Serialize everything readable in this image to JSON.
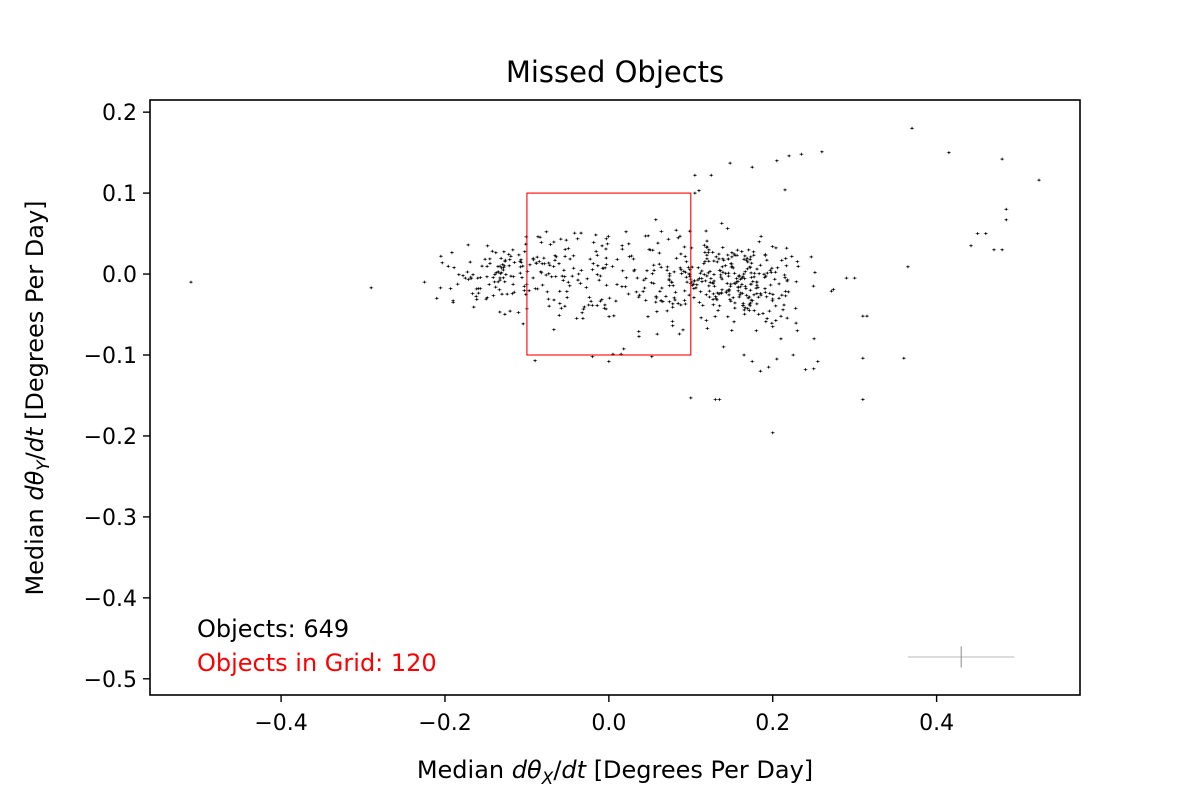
{
  "chart_data": {
    "type": "scatter",
    "title": "Missed Objects",
    "xlabel": {
      "prefix": "Median ",
      "math": "dθ",
      "sub": "X",
      "mid": "/",
      "math2": "dt",
      "suffix": " [Degrees Per Day]"
    },
    "ylabel": {
      "prefix": "Median ",
      "math": "dθ",
      "sub": "Y",
      "mid": "/",
      "math2": "dt",
      "suffix": " [Degrees Per Day]"
    },
    "xlim": [
      -0.56,
      0.575
    ],
    "ylim": [
      -0.52,
      0.215
    ],
    "xticks": [
      -0.4,
      -0.2,
      0.0,
      0.2,
      0.4
    ],
    "xtick_labels": [
      "−0.4",
      "−0.2",
      "0.0",
      "0.2",
      "0.4"
    ],
    "yticks": [
      0.2,
      0.1,
      0.0,
      -0.1,
      -0.2,
      -0.3,
      -0.4,
      -0.5
    ],
    "ytick_labels": [
      "0.2",
      "0.1",
      "0.0",
      "−0.1",
      "−0.2",
      "−0.3",
      "−0.4",
      "−0.5"
    ],
    "grid": false,
    "marker_color": "#000000",
    "grid_box": {
      "x0": -0.1,
      "x1": 0.1,
      "y0": -0.1,
      "y1": 0.1,
      "color": "#ff0000"
    },
    "annotations": [
      {
        "name": "objects-count",
        "text": "Objects: 649",
        "color": "#000000"
      },
      {
        "name": "objects-in-grid-count",
        "text": "Objects in Grid: 120",
        "color": "#ff0000"
      }
    ],
    "error_bar_example": {
      "x": 0.43,
      "y": -0.473,
      "xerr": 0.065,
      "yerr": 0.013
    },
    "outlier_points": [
      [
        -0.51,
        -0.01
      ],
      [
        -0.29,
        -0.017
      ],
      [
        0.37,
        0.18
      ],
      [
        0.415,
        0.15
      ],
      [
        0.48,
        0.142
      ],
      [
        0.525,
        0.116
      ],
      [
        0.485,
        0.08
      ],
      [
        0.485,
        0.067
      ],
      [
        0.45,
        0.05
      ],
      [
        0.46,
        0.05
      ],
      [
        0.442,
        0.035
      ],
      [
        0.48,
        0.03
      ],
      [
        0.47,
        0.03
      ],
      [
        0.365,
        0.009
      ],
      [
        0.105,
        0.122
      ],
      [
        0.125,
        0.122
      ],
      [
        0.148,
        0.137
      ],
      [
        0.175,
        0.132
      ],
      [
        0.205,
        0.14
      ],
      [
        0.22,
        0.146
      ],
      [
        0.235,
        0.148
      ],
      [
        0.26,
        0.151
      ],
      [
        0.215,
        0.104
      ],
      [
        0.105,
        0.1
      ],
      [
        0.11,
        0.103
      ],
      [
        0.29,
        -0.005
      ],
      [
        0.3,
        -0.005
      ],
      [
        0.31,
        -0.052
      ],
      [
        0.315,
        -0.052
      ],
      [
        0.31,
        -0.104
      ],
      [
        0.36,
        -0.104
      ],
      [
        0.31,
        -0.155
      ],
      [
        0.1,
        -0.153
      ],
      [
        0.13,
        -0.155
      ],
      [
        0.135,
        -0.155
      ],
      [
        0.2,
        -0.196
      ],
      [
        -0.09,
        -0.107
      ],
      [
        -0.02,
        -0.102
      ],
      [
        0.005,
        -0.099
      ],
      [
        0.015,
        -0.099
      ],
      [
        0.0,
        -0.108
      ],
      [
        0.14,
        -0.09
      ],
      [
        0.165,
        -0.1
      ],
      [
        0.175,
        -0.108
      ],
      [
        0.185,
        -0.12
      ],
      [
        0.195,
        -0.115
      ],
      [
        0.205,
        -0.105
      ],
      [
        0.225,
        -0.1
      ],
      [
        0.24,
        -0.118
      ],
      [
        0.25,
        -0.117
      ],
      [
        0.255,
        -0.108
      ],
      [
        0.21,
        -0.08
      ],
      [
        0.23,
        -0.07
      ],
      [
        0.18,
        -0.07
      ],
      [
        0.2,
        -0.065
      ],
      [
        -0.225,
        -0.01
      ],
      [
        -0.205,
        0.022
      ],
      [
        -0.21,
        -0.03
      ],
      [
        -0.19,
        -0.035
      ],
      [
        -0.19,
        -0.033
      ]
    ],
    "cluster_count": 589,
    "cluster_seed": 649
  }
}
